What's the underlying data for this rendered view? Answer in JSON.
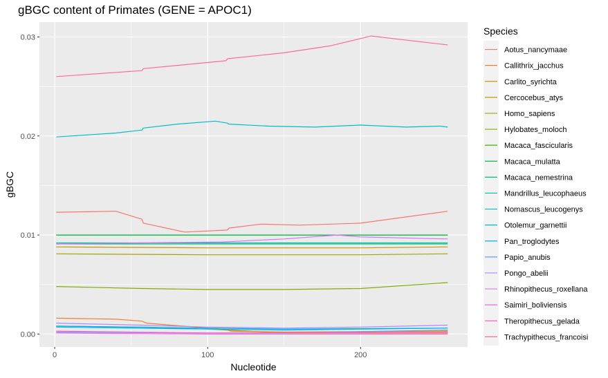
{
  "chart_data": {
    "type": "line",
    "title": "gBGC content of Primates (GENE = APOC1)",
    "xlabel": "Nucleotide",
    "ylabel": "gBGC",
    "xlim": [
      -10,
      270
    ],
    "ylim": [
      -0.0013,
      0.0315
    ],
    "xticks": [
      0,
      100,
      200
    ],
    "xtick_labels": [
      "0",
      "100",
      "200"
    ],
    "yticks": [
      0.0,
      0.01,
      0.02,
      0.03
    ],
    "ytick_labels": [
      "0.00",
      "0.01",
      "0.02",
      "0.03"
    ],
    "grid": true,
    "legend_title": "Species",
    "legend_position": "right",
    "series": [
      {
        "name": "Aotus_nancymaae",
        "color": "#F8766D",
        "x": [
          1,
          40,
          57,
          58,
          85,
          113,
          114,
          135,
          160,
          200,
          257
        ],
        "y": [
          0.0123,
          0.0124,
          0.0116,
          0.0112,
          0.0103,
          0.0105,
          0.0107,
          0.0111,
          0.011,
          0.0112,
          0.0124
        ]
      },
      {
        "name": "Callithrix_jacchus",
        "color": "#EA8331",
        "x": [
          1,
          40,
          57,
          60,
          100,
          113,
          150,
          257
        ],
        "y": [
          0.0016,
          0.0015,
          0.0013,
          0.0011,
          0.0006,
          0.0004,
          0.0001,
          0.0001
        ]
      },
      {
        "name": "Carlito_syrichta",
        "color": "#D89000",
        "x": [
          1,
          57,
          60,
          100,
          113,
          115,
          150,
          257
        ],
        "y": [
          0.0008,
          0.0007,
          0.0007,
          0.0005,
          0.0004,
          0.0003,
          0.0002,
          0.0003
        ]
      },
      {
        "name": "Cercocebus_atys",
        "color": "#C09B00",
        "x": [
          1,
          100,
          200,
          257
        ],
        "y": [
          0.0088,
          0.0087,
          0.0087,
          0.0088
        ]
      },
      {
        "name": "Homo_sapiens",
        "color": "#A3A500",
        "x": [
          1,
          100,
          200,
          257
        ],
        "y": [
          0.0081,
          0.008,
          0.008,
          0.0081
        ]
      },
      {
        "name": "Hylobates_moloch",
        "color": "#7CAE00",
        "x": [
          1,
          57,
          58,
          100,
          150,
          200,
          257
        ],
        "y": [
          0.0048,
          0.0046,
          0.0046,
          0.0045,
          0.0045,
          0.0046,
          0.0052
        ]
      },
      {
        "name": "Macaca_fascicularis",
        "color": "#39B600",
        "x": [
          1,
          257
        ],
        "y": [
          0.01,
          0.01
        ]
      },
      {
        "name": "Macaca_mulatta",
        "color": "#00BB4E",
        "x": [
          1,
          257
        ],
        "y": [
          0.01,
          0.01
        ]
      },
      {
        "name": "Macaca_nemestrina",
        "color": "#00BF7D",
        "x": [
          1,
          257
        ],
        "y": [
          0.0091,
          0.0091
        ]
      },
      {
        "name": "Mandrillus_leucophaeus",
        "color": "#00C1A3",
        "x": [
          1,
          100,
          257
        ],
        "y": [
          0.0092,
          0.0092,
          0.0092
        ]
      },
      {
        "name": "Nomascus_leucogenys",
        "color": "#00BFC4",
        "x": [
          1,
          40,
          57,
          58,
          80,
          105,
          113,
          114,
          140,
          170,
          200,
          230,
          252,
          257
        ],
        "y": [
          0.0199,
          0.0203,
          0.0206,
          0.0208,
          0.0212,
          0.0215,
          0.0213,
          0.0212,
          0.021,
          0.0209,
          0.0211,
          0.0209,
          0.021,
          0.0209
        ]
      },
      {
        "name": "Otolemur_garnettii",
        "color": "#00B9E3",
        "x": [
          1,
          100,
          150,
          257
        ],
        "y": [
          0.0007,
          0.0005,
          0.0004,
          0.0006
        ]
      },
      {
        "name": "Pan_troglodytes",
        "color": "#00ADFA",
        "x": [
          1,
          100,
          150,
          257
        ],
        "y": [
          0.0008,
          0.0006,
          0.0005,
          0.0006
        ]
      },
      {
        "name": "Papio_anubis",
        "color": "#619CFF",
        "x": [
          1,
          100,
          150,
          257
        ],
        "y": [
          0.0002,
          0.0001,
          0.0001,
          0.0004
        ]
      },
      {
        "name": "Pongo_abelii",
        "color": "#AE87FF",
        "x": [
          1,
          57,
          100,
          150,
          200,
          257
        ],
        "y": [
          0.0011,
          0.0009,
          0.0007,
          0.0006,
          0.0007,
          0.0009
        ]
      },
      {
        "name": "Rhinopithecus_roxellana",
        "color": "#DB72FB",
        "x": [
          1,
          57,
          110,
          150,
          185,
          200,
          257
        ],
        "y": [
          0.0091,
          0.0092,
          0.0093,
          0.0096,
          0.01,
          0.0098,
          0.0096
        ]
      },
      {
        "name": "Saimiri_boliviensis",
        "color": "#F564E3",
        "x": [
          1,
          100,
          257
        ],
        "y": [
          0.0001,
          0.0,
          0.0
        ]
      },
      {
        "name": "Theropithecus_gelada",
        "color": "#FF61C3",
        "x": [
          1,
          100,
          257
        ],
        "y": [
          0.0003,
          0.0001,
          0.0002
        ]
      },
      {
        "name": "Trachypithecus_francoisi",
        "color": "#FF699C",
        "x": [
          1,
          57,
          58,
          112,
          113,
          150,
          180,
          207,
          257
        ],
        "y": [
          0.026,
          0.0266,
          0.0268,
          0.0276,
          0.0278,
          0.0284,
          0.0291,
          0.0301,
          0.0292
        ]
      }
    ]
  }
}
